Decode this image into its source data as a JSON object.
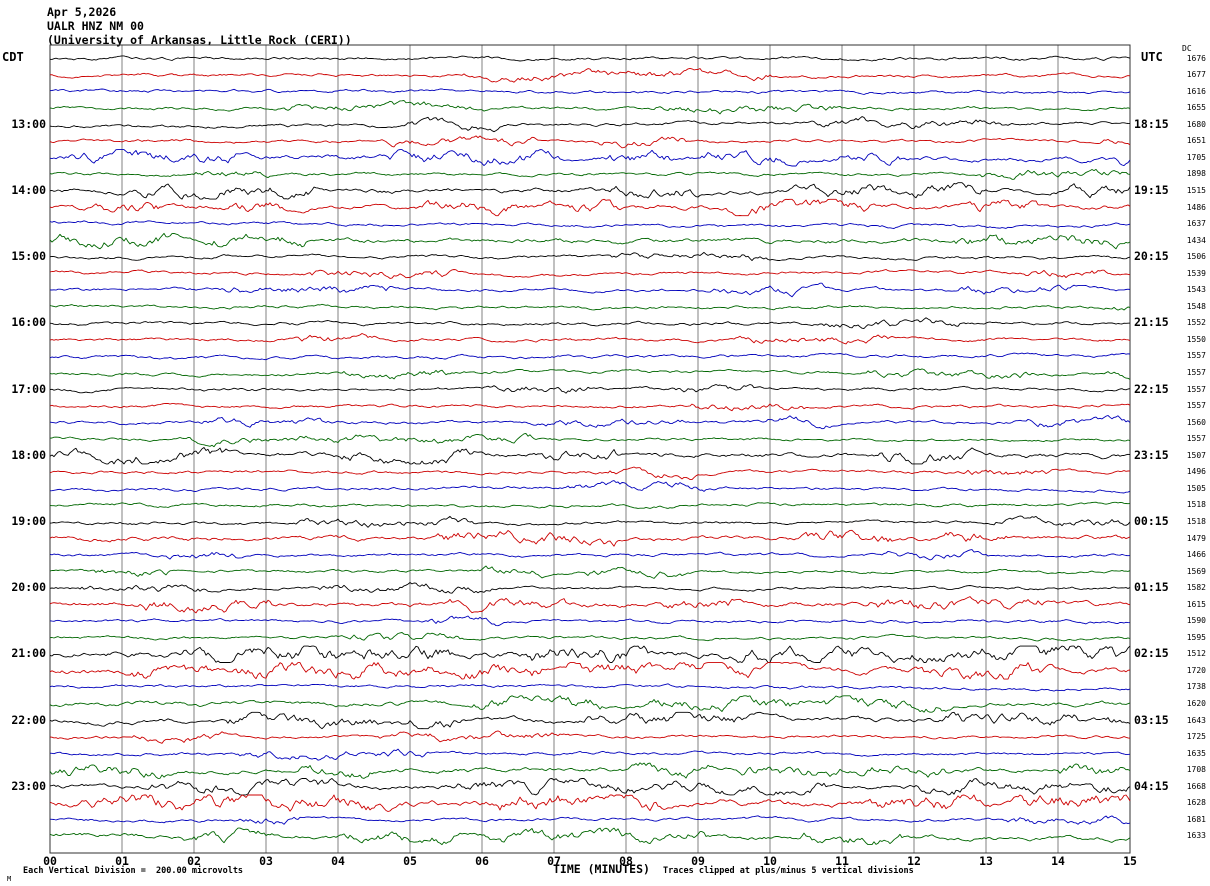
{
  "header": {
    "date": "Apr 5,2026",
    "station": "UALR HNZ NM 00",
    "institution": "(University of Arkansas, Little Rock (CERI))"
  },
  "axes": {
    "left_timezone": "CDT",
    "right_timezone": "UTC",
    "dc_header": "DC",
    "xlabel": "TIME (MINUTES)",
    "x_ticks": [
      "00",
      "01",
      "02",
      "03",
      "04",
      "05",
      "06",
      "07",
      "08",
      "09",
      "10",
      "11",
      "12",
      "13",
      "14",
      "15"
    ]
  },
  "footer": {
    "scale_note": "Each Vertical Division =  200.00 microvolts",
    "clip_note": "Traces clipped at plus/minus 5 vertical divisions",
    "stray": "M"
  },
  "colors": {
    "black": "#000000",
    "red": "#cc0000",
    "blue": "#0000bb",
    "green": "#006600",
    "grid": "#808080",
    "border": "#303030"
  },
  "chart_data": {
    "type": "line",
    "subtype": "helicorder-seismogram",
    "title": "UALR HNZ NM 00 (University of Arkansas, Little Rock (CERI)) Apr 5,2026",
    "xlabel": "TIME (MINUTES)",
    "x_range": [
      0,
      15
    ],
    "minutes_per_row": 15,
    "rows_per_hour": 4,
    "color_cycle": [
      "black",
      "red",
      "blue",
      "green"
    ],
    "waveform_note": "Continuous ambient seismic noise traces; individual sample values not readable from image. 'act' is relative visible activity level 1-3 per row. 'dc' is the DC offset value printed at right edge of each row.",
    "rows": [
      {
        "color": "black",
        "dc": 1676,
        "cdt": "",
        "utc": "",
        "act": 1
      },
      {
        "color": "red",
        "dc": 1677,
        "cdt": "",
        "utc": "",
        "act": 1
      },
      {
        "color": "blue",
        "dc": 1616,
        "cdt": "",
        "utc": "",
        "act": 1
      },
      {
        "color": "green",
        "dc": 1655,
        "cdt": "",
        "utc": "",
        "act": 1
      },
      {
        "color": "black",
        "dc": 1680,
        "cdt": "13:00",
        "utc": "18:15",
        "act": 1
      },
      {
        "color": "red",
        "dc": 1651,
        "cdt": "",
        "utc": "",
        "act": 1
      },
      {
        "color": "blue",
        "dc": 1705,
        "cdt": "",
        "utc": "",
        "act": 2
      },
      {
        "color": "green",
        "dc": 1898,
        "cdt": "",
        "utc": "",
        "act": 1
      },
      {
        "color": "black",
        "dc": 1515,
        "cdt": "14:00",
        "utc": "19:15",
        "act": 2
      },
      {
        "color": "red",
        "dc": 1486,
        "cdt": "",
        "utc": "",
        "act": 2
      },
      {
        "color": "blue",
        "dc": 1637,
        "cdt": "",
        "utc": "",
        "act": 1
      },
      {
        "color": "green",
        "dc": 1434,
        "cdt": "",
        "utc": "",
        "act": 2
      },
      {
        "color": "black",
        "dc": 1506,
        "cdt": "15:00",
        "utc": "20:15",
        "act": 1
      },
      {
        "color": "red",
        "dc": 1539,
        "cdt": "",
        "utc": "",
        "act": 1
      },
      {
        "color": "blue",
        "dc": 1543,
        "cdt": "",
        "utc": "",
        "act": 1
      },
      {
        "color": "green",
        "dc": 1548,
        "cdt": "",
        "utc": "",
        "act": 1
      },
      {
        "color": "black",
        "dc": 1552,
        "cdt": "16:00",
        "utc": "21:15",
        "act": 1
      },
      {
        "color": "red",
        "dc": 1550,
        "cdt": "",
        "utc": "",
        "act": 1
      },
      {
        "color": "blue",
        "dc": 1557,
        "cdt": "",
        "utc": "",
        "act": 1
      },
      {
        "color": "green",
        "dc": 1557,
        "cdt": "",
        "utc": "",
        "act": 1
      },
      {
        "color": "black",
        "dc": 1557,
        "cdt": "17:00",
        "utc": "22:15",
        "act": 1
      },
      {
        "color": "red",
        "dc": 1557,
        "cdt": "",
        "utc": "",
        "act": 1
      },
      {
        "color": "blue",
        "dc": 1560,
        "cdt": "",
        "utc": "",
        "act": 1
      },
      {
        "color": "green",
        "dc": 1557,
        "cdt": "",
        "utc": "",
        "act": 1
      },
      {
        "color": "black",
        "dc": 1507,
        "cdt": "18:00",
        "utc": "23:15",
        "act": 2
      },
      {
        "color": "red",
        "dc": 1496,
        "cdt": "",
        "utc": "",
        "act": 1
      },
      {
        "color": "blue",
        "dc": 1505,
        "cdt": "",
        "utc": "",
        "act": 1
      },
      {
        "color": "green",
        "dc": 1518,
        "cdt": "",
        "utc": "",
        "act": 1
      },
      {
        "color": "black",
        "dc": 1518,
        "cdt": "19:00",
        "utc": "00:15",
        "act": 1
      },
      {
        "color": "red",
        "dc": 1479,
        "cdt": "",
        "utc": "",
        "act": 2
      },
      {
        "color": "blue",
        "dc": 1466,
        "cdt": "",
        "utc": "",
        "act": 1
      },
      {
        "color": "green",
        "dc": 1569,
        "cdt": "",
        "utc": "",
        "act": 1
      },
      {
        "color": "black",
        "dc": 1582,
        "cdt": "20:00",
        "utc": "01:15",
        "act": 1
      },
      {
        "color": "red",
        "dc": 1615,
        "cdt": "",
        "utc": "",
        "act": 2
      },
      {
        "color": "blue",
        "dc": 1590,
        "cdt": "",
        "utc": "",
        "act": 1
      },
      {
        "color": "green",
        "dc": 1595,
        "cdt": "",
        "utc": "",
        "act": 1
      },
      {
        "color": "black",
        "dc": 1512,
        "cdt": "21:00",
        "utc": "02:15",
        "act": 3
      },
      {
        "color": "red",
        "dc": 1720,
        "cdt": "",
        "utc": "",
        "act": 3
      },
      {
        "color": "blue",
        "dc": 1738,
        "cdt": "",
        "utc": "",
        "act": 1
      },
      {
        "color": "green",
        "dc": 1620,
        "cdt": "",
        "utc": "",
        "act": 2
      },
      {
        "color": "black",
        "dc": 1643,
        "cdt": "22:00",
        "utc": "03:15",
        "act": 2
      },
      {
        "color": "red",
        "dc": 1725,
        "cdt": "",
        "utc": "",
        "act": 1
      },
      {
        "color": "blue",
        "dc": 1635,
        "cdt": "",
        "utc": "",
        "act": 1
      },
      {
        "color": "green",
        "dc": 1708,
        "cdt": "",
        "utc": "",
        "act": 2
      },
      {
        "color": "black",
        "dc": 1668,
        "cdt": "23:00",
        "utc": "04:15",
        "act": 2
      },
      {
        "color": "red",
        "dc": 1628,
        "cdt": "",
        "utc": "",
        "act": 3
      },
      {
        "color": "blue",
        "dc": 1681,
        "cdt": "",
        "utc": "",
        "act": 1
      },
      {
        "color": "green",
        "dc": 1633,
        "cdt": "",
        "utc": "",
        "act": 2
      }
    ]
  }
}
